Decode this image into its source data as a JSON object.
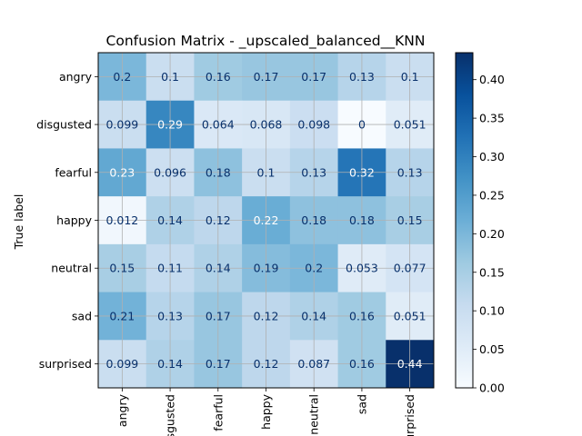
{
  "chart_data": {
    "type": "heatmap",
    "title": "Confusion Matrix - _upscaled_balanced__KNN",
    "ylabel": "True label",
    "xlabel": "",
    "row_labels": [
      "angry",
      "disgusted",
      "fearful",
      "happy",
      "neutral",
      "sad",
      "surprised"
    ],
    "col_labels": [
      "angry",
      "disgusted",
      "fearful",
      "happy",
      "neutral",
      "sad",
      "surprised"
    ],
    "cell_text": [
      [
        "0.2",
        "0.1",
        "0.16",
        "0.17",
        "0.17",
        "0.13",
        "0.1"
      ],
      [
        "0.099",
        "0.29",
        "0.064",
        "0.068",
        "0.098",
        "0",
        "0.051"
      ],
      [
        "0.23",
        "0.096",
        "0.18",
        "0.1",
        "0.13",
        "0.32",
        "0.13"
      ],
      [
        "0.012",
        "0.14",
        "0.12",
        "0.22",
        "0.18",
        "0.18",
        "0.15"
      ],
      [
        "0.15",
        "0.11",
        "0.14",
        "0.19",
        "0.2",
        "0.053",
        "0.077"
      ],
      [
        "0.21",
        "0.13",
        "0.17",
        "0.12",
        "0.14",
        "0.16",
        "0.051"
      ],
      [
        "0.099",
        "0.14",
        "0.17",
        "0.12",
        "0.087",
        "0.16",
        "0.44"
      ]
    ],
    "values": [
      [
        0.2,
        0.1,
        0.16,
        0.17,
        0.17,
        0.13,
        0.1
      ],
      [
        0.099,
        0.29,
        0.064,
        0.068,
        0.098,
        0,
        0.051
      ],
      [
        0.23,
        0.096,
        0.18,
        0.1,
        0.13,
        0.32,
        0.13
      ],
      [
        0.012,
        0.14,
        0.12,
        0.22,
        0.18,
        0.18,
        0.15
      ],
      [
        0.15,
        0.11,
        0.14,
        0.19,
        0.2,
        0.053,
        0.077
      ],
      [
        0.21,
        0.13,
        0.17,
        0.12,
        0.14,
        0.16,
        0.051
      ],
      [
        0.099,
        0.14,
        0.17,
        0.12,
        0.087,
        0.16,
        0.44
      ]
    ],
    "colorbar": {
      "min": 0,
      "max": 0.435,
      "ticks": [
        "0.00",
        "0.05",
        "0.10",
        "0.15",
        "0.20",
        "0.25",
        "0.30",
        "0.35",
        "0.40"
      ],
      "colormap": "Blues"
    },
    "grid": true
  }
}
